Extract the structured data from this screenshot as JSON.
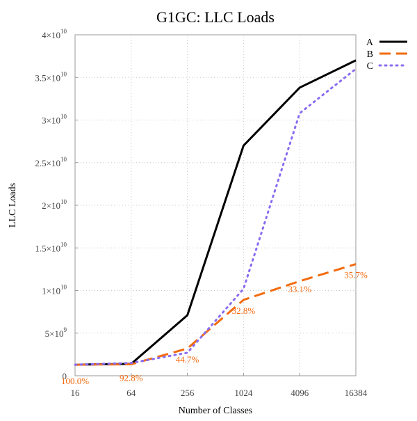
{
  "chart_data": {
    "type": "line",
    "title": "G1GC: LLC Loads",
    "xlabel": "Number of Classes",
    "ylabel": "LLC Loads",
    "x": [
      16,
      64,
      256,
      1024,
      4096,
      16384
    ],
    "x_scale": "log2",
    "x_tick_labels": [
      "16",
      "64",
      "256",
      "1024",
      "4096",
      "16384"
    ],
    "ylim": [
      0,
      40000000000
    ],
    "y_ticks": [
      {
        "value": 0,
        "mantissa": "0",
        "exp": ""
      },
      {
        "value": 5000000000,
        "mantissa": "5×10",
        "exp": "9"
      },
      {
        "value": 10000000000,
        "mantissa": "1×10",
        "exp": "10"
      },
      {
        "value": 15000000000,
        "mantissa": "1.5×10",
        "exp": "10"
      },
      {
        "value": 20000000000,
        "mantissa": "2×10",
        "exp": "10"
      },
      {
        "value": 25000000000,
        "mantissa": "2.5×10",
        "exp": "10"
      },
      {
        "value": 30000000000,
        "mantissa": "3×10",
        "exp": "10"
      },
      {
        "value": 35000000000,
        "mantissa": "3.5×10",
        "exp": "10"
      },
      {
        "value": 40000000000,
        "mantissa": "4×10",
        "exp": "10"
      }
    ],
    "grid": true,
    "legend_position": "top-right",
    "series": [
      {
        "name": "A",
        "color": "#000000",
        "style": "solid",
        "values": [
          1300000000,
          1400000000,
          7100000000,
          27000000000,
          33800000000,
          37000000000
        ]
      },
      {
        "name": "B",
        "color": "#f26b0f",
        "style": "dashed",
        "values": [
          1300000000,
          1350000000,
          3200000000,
          8900000000,
          11100000000,
          13100000000
        ]
      },
      {
        "name": "C",
        "color": "#8a6cf0",
        "style": "dotted",
        "values": [
          1300000000,
          1500000000,
          2700000000,
          10200000000,
          30800000000,
          36000000000
        ]
      }
    ],
    "annotations": [
      {
        "x": 16,
        "text": "100.0%",
        "color": "#f26b0f"
      },
      {
        "x": 64,
        "text": "92.8%",
        "color": "#f26b0f"
      },
      {
        "x": 256,
        "text": "44.7%",
        "color": "#f26b0f"
      },
      {
        "x": 1024,
        "text": "32.8%",
        "color": "#f26b0f"
      },
      {
        "x": 4096,
        "text": "33.1%",
        "color": "#f26b0f"
      },
      {
        "x": 16384,
        "text": "35.7%",
        "color": "#f26b0f"
      }
    ]
  }
}
